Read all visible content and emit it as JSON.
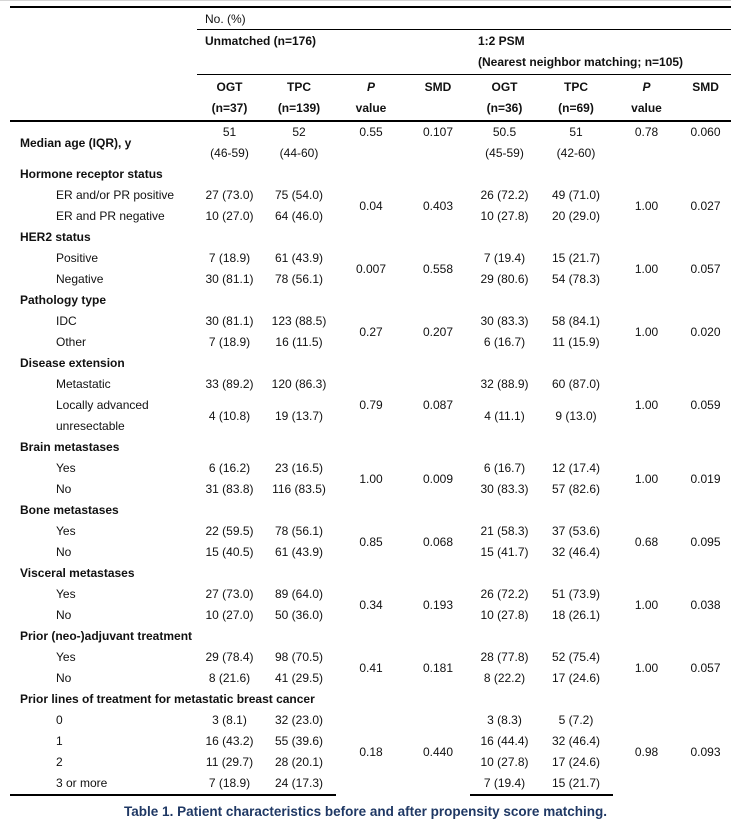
{
  "colors": {
    "caption_text": "#1f3864",
    "rule": "#000000",
    "body_text": "#111111"
  },
  "header": {
    "no_pct": "No. (%)",
    "groups": [
      {
        "line1": "Unmatched (n=176)",
        "line2": ""
      },
      {
        "line1": "1:2 PSM",
        "line2": "(Nearest neighbor matching; n=105)"
      }
    ],
    "columns": [
      {
        "line1": "OGT",
        "line2": "(n=37)",
        "italic": false
      },
      {
        "line1": "TPC",
        "line2": "(n=139)",
        "italic": false
      },
      {
        "line1": "P",
        "line2": "value",
        "italic": true
      },
      {
        "line1": "SMD",
        "line2": "",
        "italic": false
      },
      {
        "line1": "OGT",
        "line2": "(n=36)",
        "italic": false
      },
      {
        "line1": "TPC",
        "line2": "(n=69)",
        "italic": false
      },
      {
        "line1": "P",
        "line2": "value",
        "italic": true
      },
      {
        "line1": "SMD",
        "line2": "",
        "italic": false
      }
    ]
  },
  "sections": [
    {
      "title": null,
      "stats_align": "top",
      "rows": [
        {
          "label": [
            "Median age (IQR), y"
          ],
          "bold": true,
          "ogt1": [
            "51",
            "(46-59)"
          ],
          "tpc1": [
            "52",
            "(44-60)"
          ],
          "ogt2": [
            "50.5",
            "(45-59)"
          ],
          "tpc2": [
            "51",
            "(42-60)"
          ]
        }
      ],
      "stats": {
        "p1": "0.55",
        "smd1": "0.107",
        "p2": "0.78",
        "smd2": "0.060"
      }
    },
    {
      "title": "Hormone receptor status",
      "stats_align": "middle",
      "rows": [
        {
          "label": [
            "ER and/or PR positive"
          ],
          "ogt1": [
            "27 (73.0)"
          ],
          "tpc1": [
            "75 (54.0)"
          ],
          "ogt2": [
            "26 (72.2)"
          ],
          "tpc2": [
            "49 (71.0)"
          ]
        },
        {
          "label": [
            "ER and PR negative"
          ],
          "ogt1": [
            "10 (27.0)"
          ],
          "tpc1": [
            "64 (46.0)"
          ],
          "ogt2": [
            "10 (27.8)"
          ],
          "tpc2": [
            "20 (29.0)"
          ]
        }
      ],
      "stats": {
        "p1": "0.04",
        "smd1": "0.403",
        "p2": "1.00",
        "smd2": "0.027"
      }
    },
    {
      "title": "HER2 status",
      "stats_align": "middle",
      "rows": [
        {
          "label": [
            "Positive"
          ],
          "ogt1": [
            "7 (18.9)"
          ],
          "tpc1": [
            "61 (43.9)"
          ],
          "ogt2": [
            "7 (19.4)"
          ],
          "tpc2": [
            "15 (21.7)"
          ]
        },
        {
          "label": [
            "Negative"
          ],
          "ogt1": [
            "30 (81.1)"
          ],
          "tpc1": [
            "78 (56.1)"
          ],
          "ogt2": [
            "29 (80.6)"
          ],
          "tpc2": [
            "54 (78.3)"
          ]
        }
      ],
      "stats": {
        "p1": "0.007",
        "smd1": "0.558",
        "p2": "1.00",
        "smd2": "0.057"
      }
    },
    {
      "title": "Pathology type",
      "stats_align": "middle",
      "rows": [
        {
          "label": [
            "IDC"
          ],
          "ogt1": [
            "30 (81.1)"
          ],
          "tpc1": [
            "123 (88.5)"
          ],
          "ogt2": [
            "30 (83.3)"
          ],
          "tpc2": [
            "58 (84.1)"
          ]
        },
        {
          "label": [
            "Other"
          ],
          "ogt1": [
            "7 (18.9)"
          ],
          "tpc1": [
            "16 (11.5)"
          ],
          "ogt2": [
            "6 (16.7)"
          ],
          "tpc2": [
            "11 (15.9)"
          ]
        }
      ],
      "stats": {
        "p1": "0.27",
        "smd1": "0.207",
        "p2": "1.00",
        "smd2": "0.020"
      }
    },
    {
      "title": "Disease extension",
      "stats_align": "middle",
      "rows": [
        {
          "label": [
            "Metastatic"
          ],
          "ogt1": [
            "33 (89.2)"
          ],
          "tpc1": [
            "120 (86.3)"
          ],
          "ogt2": [
            "32 (88.9)"
          ],
          "tpc2": [
            "60 (87.0)"
          ]
        },
        {
          "label": [
            "Locally advanced",
            "unresectable"
          ],
          "ogt1": [
            "4 (10.8)"
          ],
          "tpc1": [
            "19 (13.7)"
          ],
          "ogt2": [
            "4 (11.1)"
          ],
          "tpc2": [
            "9 (13.0)"
          ]
        }
      ],
      "stats": {
        "p1": "0.79",
        "smd1": "0.087",
        "p2": "1.00",
        "smd2": "0.059"
      }
    },
    {
      "title": "Brain metastases",
      "stats_align": "middle",
      "rows": [
        {
          "label": [
            "Yes"
          ],
          "ogt1": [
            "6 (16.2)"
          ],
          "tpc1": [
            "23 (16.5)"
          ],
          "ogt2": [
            "6 (16.7)"
          ],
          "tpc2": [
            "12 (17.4)"
          ]
        },
        {
          "label": [
            "No"
          ],
          "ogt1": [
            "31 (83.8)"
          ],
          "tpc1": [
            "116 (83.5)"
          ],
          "ogt2": [
            "30 (83.3)"
          ],
          "tpc2": [
            "57 (82.6)"
          ]
        }
      ],
      "stats": {
        "p1": "1.00",
        "smd1": "0.009",
        "p2": "1.00",
        "smd2": "0.019"
      }
    },
    {
      "title": "Bone metastases",
      "stats_align": "middle",
      "rows": [
        {
          "label": [
            "Yes"
          ],
          "ogt1": [
            "22 (59.5)"
          ],
          "tpc1": [
            "78 (56.1)"
          ],
          "ogt2": [
            "21 (58.3)"
          ],
          "tpc2": [
            "37 (53.6)"
          ]
        },
        {
          "label": [
            "No"
          ],
          "ogt1": [
            "15 (40.5)"
          ],
          "tpc1": [
            "61 (43.9)"
          ],
          "ogt2": [
            "15 (41.7)"
          ],
          "tpc2": [
            "32 (46.4)"
          ]
        }
      ],
      "stats": {
        "p1": "0.85",
        "smd1": "0.068",
        "p2": "0.68",
        "smd2": "0.095"
      }
    },
    {
      "title": "Visceral metastases",
      "stats_align": "middle",
      "rows": [
        {
          "label": [
            "Yes"
          ],
          "ogt1": [
            "27 (73.0)"
          ],
          "tpc1": [
            "89 (64.0)"
          ],
          "ogt2": [
            "26 (72.2)"
          ],
          "tpc2": [
            "51 (73.9)"
          ]
        },
        {
          "label": [
            "No"
          ],
          "ogt1": [
            "10 (27.0)"
          ],
          "tpc1": [
            "50 (36.0)"
          ],
          "ogt2": [
            "10 (27.8)"
          ],
          "tpc2": [
            "18 (26.1)"
          ]
        }
      ],
      "stats": {
        "p1": "0.34",
        "smd1": "0.193",
        "p2": "1.00",
        "smd2": "0.038"
      }
    },
    {
      "title": "Prior (neo-)adjuvant treatment",
      "stats_align": "middle",
      "rows": [
        {
          "label": [
            "Yes"
          ],
          "ogt1": [
            "29 (78.4)"
          ],
          "tpc1": [
            "98 (70.5)"
          ],
          "ogt2": [
            "28 (77.8)"
          ],
          "tpc2": [
            "52 (75.4)"
          ]
        },
        {
          "label": [
            "No"
          ],
          "ogt1": [
            "8 (21.6)"
          ],
          "tpc1": [
            "41 (29.5)"
          ],
          "ogt2": [
            "8 (22.2)"
          ],
          "tpc2": [
            "17 (24.6)"
          ]
        }
      ],
      "stats": {
        "p1": "0.41",
        "smd1": "0.181",
        "p2": "1.00",
        "smd2": "0.057"
      }
    },
    {
      "title": "Prior lines of treatment for metastatic breast cancer",
      "stats_align": "middle",
      "rows": [
        {
          "label": [
            "0"
          ],
          "ogt1": [
            "3 (8.1)"
          ],
          "tpc1": [
            "32 (23.0)"
          ],
          "ogt2": [
            "3 (8.3)"
          ],
          "tpc2": [
            "5 (7.2)"
          ]
        },
        {
          "label": [
            "1"
          ],
          "ogt1": [
            "16 (43.2)"
          ],
          "tpc1": [
            "55 (39.6)"
          ],
          "ogt2": [
            "16 (44.4)"
          ],
          "tpc2": [
            "32 (46.4)"
          ]
        },
        {
          "label": [
            "2"
          ],
          "ogt1": [
            "11 (29.7)"
          ],
          "tpc1": [
            "28 (20.1)"
          ],
          "ogt2": [
            "10 (27.8)"
          ],
          "tpc2": [
            "17 (24.6)"
          ]
        },
        {
          "label": [
            "3 or more"
          ],
          "ogt1": [
            "7 (18.9)"
          ],
          "tpc1": [
            "24 (17.3)"
          ],
          "ogt2": [
            "7 (19.4)"
          ],
          "tpc2": [
            "15 (21.7)"
          ]
        }
      ],
      "stats": {
        "p1": "0.18",
        "smd1": "0.440",
        "p2": "0.98",
        "smd2": "0.093"
      }
    }
  ],
  "caption": "Table 1. Patient characteristics before and after propensity score matching."
}
